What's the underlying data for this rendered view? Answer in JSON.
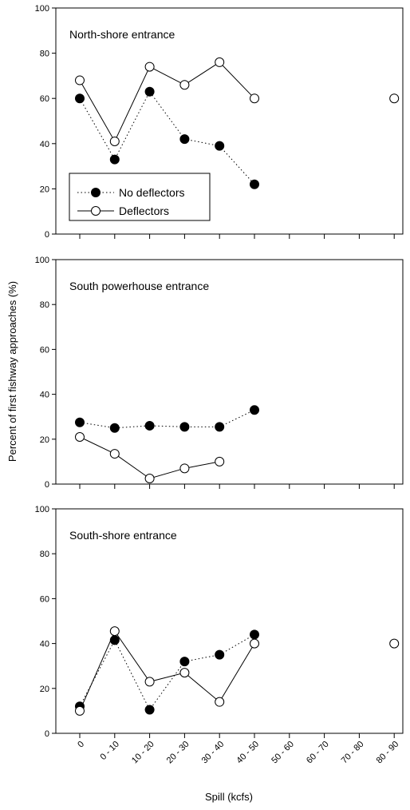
{
  "chart_data": {
    "type": "line",
    "ylabel": "Percent of first fishway approaches (%)",
    "xlabel": "Spill (kcfs)",
    "categories": [
      "0",
      "0 - 10",
      "10 - 20",
      "20 - 30",
      "30 - 40",
      "40 - 50",
      "50 - 60",
      "60 - 70",
      "70 - 80",
      "80 - 90"
    ],
    "ylim": [
      0,
      100
    ],
    "yticks": [
      0,
      20,
      40,
      60,
      80,
      100
    ],
    "legend": {
      "placement": "lower-left of top panel",
      "entries": [
        {
          "label": "No deflectors",
          "marker": "filled-circle",
          "line": "dotted"
        },
        {
          "label": "Deflectors",
          "marker": "open-circle",
          "line": "solid"
        }
      ]
    },
    "panels": [
      {
        "title": "North-shore entrance",
        "series": [
          {
            "name": "No deflectors",
            "values": [
              60,
              33,
              63,
              42,
              39,
              22,
              null,
              null,
              null,
              null
            ]
          },
          {
            "name": "Deflectors",
            "values": [
              68,
              41,
              74,
              66,
              76,
              60,
              null,
              null,
              null,
              60
            ]
          }
        ]
      },
      {
        "title": "South powerhouse entrance",
        "series": [
          {
            "name": "No deflectors",
            "values": [
              27.5,
              25,
              26,
              25.5,
              25.5,
              33,
              null,
              null,
              null,
              null
            ]
          },
          {
            "name": "Deflectors",
            "values": [
              21,
              13.5,
              2.5,
              7,
              10,
              null,
              null,
              null,
              null,
              null
            ]
          }
        ]
      },
      {
        "title": "South-shore entrance",
        "series": [
          {
            "name": "No deflectors",
            "values": [
              12,
              41.5,
              10.5,
              32,
              35,
              44,
              null,
              null,
              null,
              null
            ]
          },
          {
            "name": "Deflectors",
            "values": [
              10,
              45.5,
              23,
              27,
              14,
              40,
              null,
              null,
              null,
              40
            ]
          }
        ]
      }
    ]
  }
}
